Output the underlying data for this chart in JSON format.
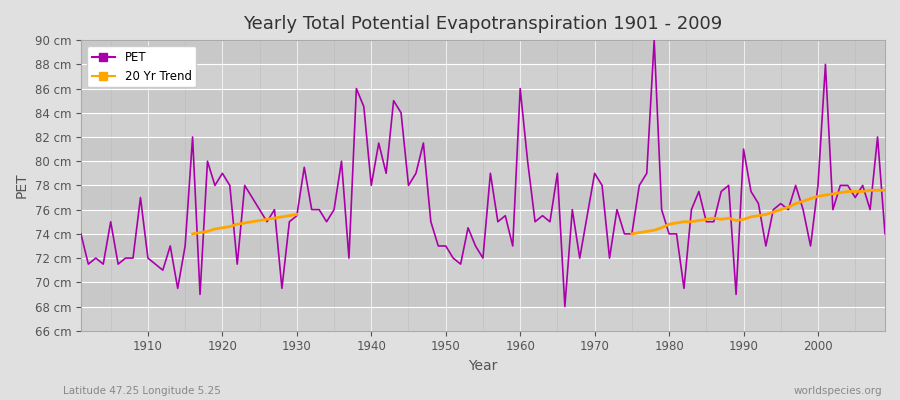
{
  "title": "Yearly Total Potential Evapotranspiration 1901 - 2009",
  "ylabel": "PET",
  "xlabel": "Year",
  "footnote_left": "Latitude 47.25 Longitude 5.25",
  "footnote_right": "worldspecies.org",
  "ylim": [
    66,
    90
  ],
  "yticks": [
    66,
    68,
    70,
    72,
    74,
    76,
    78,
    80,
    82,
    84,
    86,
    88,
    90
  ],
  "xticks": [
    1910,
    1920,
    1930,
    1940,
    1950,
    1960,
    1970,
    1980,
    1990,
    2000
  ],
  "xlim": [
    1901,
    2009
  ],
  "pet_color": "#aa00aa",
  "trend_color": "#ffa500",
  "bg_color": "#e0e0e0",
  "plot_bg_color": "#d4d4d4",
  "grid_color": "#ffffff",
  "years": [
    1901,
    1902,
    1903,
    1904,
    1905,
    1906,
    1907,
    1908,
    1909,
    1910,
    1911,
    1912,
    1913,
    1914,
    1915,
    1916,
    1917,
    1918,
    1919,
    1920,
    1921,
    1922,
    1923,
    1924,
    1925,
    1926,
    1927,
    1928,
    1929,
    1930,
    1931,
    1932,
    1933,
    1934,
    1935,
    1936,
    1937,
    1938,
    1939,
    1940,
    1941,
    1942,
    1943,
    1944,
    1945,
    1946,
    1947,
    1948,
    1949,
    1950,
    1951,
    1952,
    1953,
    1954,
    1955,
    1956,
    1957,
    1958,
    1959,
    1960,
    1961,
    1962,
    1963,
    1964,
    1965,
    1966,
    1967,
    1968,
    1969,
    1970,
    1971,
    1972,
    1973,
    1974,
    1975,
    1976,
    1977,
    1978,
    1979,
    1980,
    1981,
    1982,
    1983,
    1984,
    1985,
    1986,
    1987,
    1988,
    1989,
    1990,
    1991,
    1992,
    1993,
    1994,
    1995,
    1996,
    1997,
    1998,
    1999,
    2000,
    2001,
    2002,
    2003,
    2004,
    2005,
    2006,
    2007,
    2008,
    2009
  ],
  "pet_values": [
    74.0,
    71.5,
    72.0,
    71.5,
    75.0,
    71.5,
    72.0,
    72.0,
    77.0,
    72.0,
    71.5,
    71.0,
    73.0,
    69.5,
    73.0,
    82.0,
    69.0,
    80.0,
    78.0,
    79.0,
    78.0,
    71.5,
    78.0,
    77.0,
    76.0,
    75.0,
    76.0,
    69.5,
    75.0,
    75.5,
    79.5,
    76.0,
    76.0,
    75.0,
    76.0,
    80.0,
    72.0,
    86.0,
    84.5,
    78.0,
    81.5,
    79.0,
    85.0,
    84.0,
    78.0,
    79.0,
    81.5,
    75.0,
    73.0,
    73.0,
    72.0,
    71.5,
    74.5,
    73.0,
    72.0,
    79.0,
    75.0,
    75.5,
    73.0,
    86.0,
    80.0,
    75.0,
    75.5,
    75.0,
    79.0,
    68.0,
    76.0,
    72.0,
    75.5,
    79.0,
    78.0,
    72.0,
    76.0,
    74.0,
    74.0,
    78.0,
    79.0,
    90.0,
    76.0,
    74.0,
    74.0,
    69.5,
    76.0,
    77.5,
    75.0,
    75.0,
    77.5,
    78.0,
    69.0,
    81.0,
    77.5,
    76.5,
    73.0,
    76.0,
    76.5,
    76.0,
    78.0,
    76.0,
    73.0,
    78.0,
    88.0,
    76.0,
    78.0,
    78.0,
    77.0,
    78.0,
    76.0,
    82.0,
    74.0
  ],
  "trend_seg1_years": [
    1916,
    1917,
    1918,
    1919,
    1920,
    1921,
    1922,
    1923,
    1924,
    1925,
    1926,
    1927,
    1928,
    1929,
    1930
  ],
  "trend_seg1_values": [
    74.0,
    74.1,
    74.2,
    74.4,
    74.5,
    74.6,
    74.8,
    74.9,
    75.0,
    75.1,
    75.2,
    75.3,
    75.4,
    75.5,
    75.6
  ],
  "trend_seg2_years": [
    1975,
    1976,
    1977,
    1978,
    1979,
    1980,
    1981,
    1982,
    1983,
    1984,
    1985,
    1986,
    1987,
    1988,
    1989,
    1990,
    1991,
    1992,
    1993,
    1994,
    1995,
    1996,
    1997,
    1998,
    1999,
    2000,
    2001,
    2002,
    2003,
    2004,
    2005,
    2006,
    2007,
    2008,
    2009
  ],
  "trend_seg2_values": [
    74.0,
    74.1,
    74.2,
    74.3,
    74.5,
    74.8,
    74.9,
    75.0,
    75.0,
    75.1,
    75.2,
    75.3,
    75.2,
    75.3,
    75.1,
    75.2,
    75.4,
    75.5,
    75.6,
    75.8,
    76.0,
    76.2,
    76.5,
    76.7,
    76.9,
    77.1,
    77.2,
    77.3,
    77.4,
    77.5,
    77.5,
    77.5,
    77.6,
    77.6,
    77.6
  ]
}
